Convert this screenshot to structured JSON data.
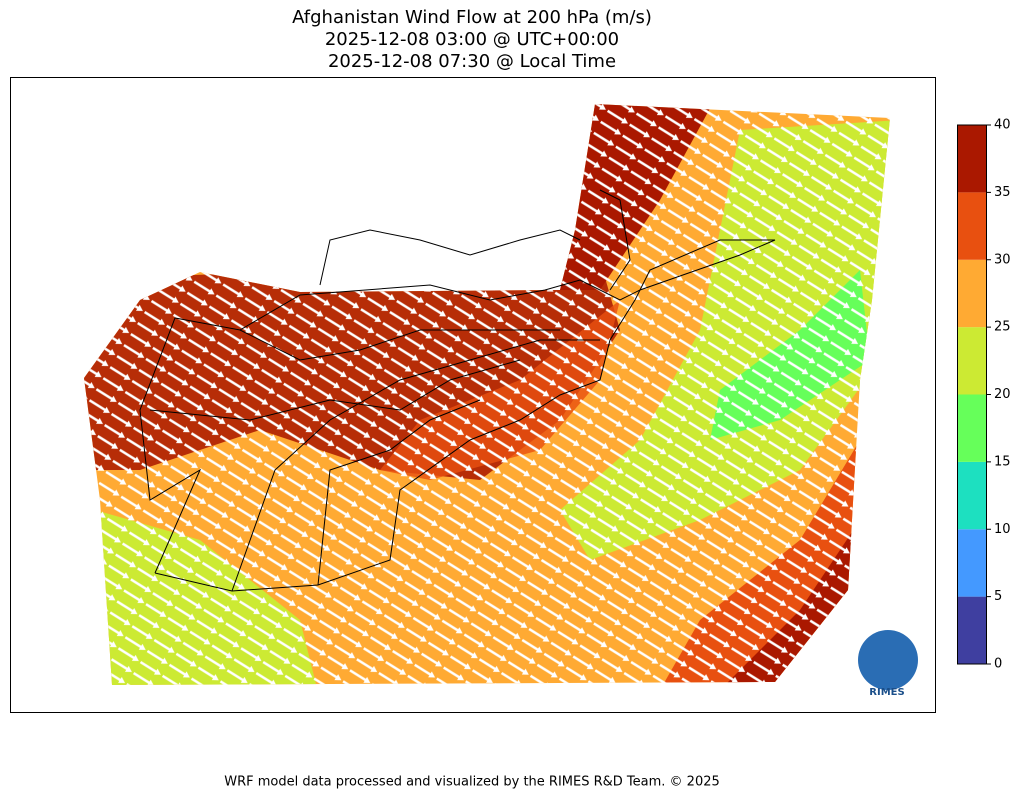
{
  "title": "Afghanistan Wind Flow at 200 hPa (m/s)",
  "subtitle": [
    "2025-12-08 03:00 @ UTC+00:00",
    "2025-12-08 07:30 @ Local Time"
  ],
  "colorbar": {
    "levels": [
      0,
      5,
      10,
      15,
      20,
      25,
      30,
      35,
      40
    ],
    "colors": [
      "#3f3fa0",
      "#4499ff",
      "#1de0c0",
      "#66ff5a",
      "#ccea33",
      "#ffaa33",
      "#e85010",
      "#aa1800"
    ]
  },
  "logo": "RIMES",
  "footer": "WRF model data processed and visualized by the RIMES R&D Team. © 2025"
}
